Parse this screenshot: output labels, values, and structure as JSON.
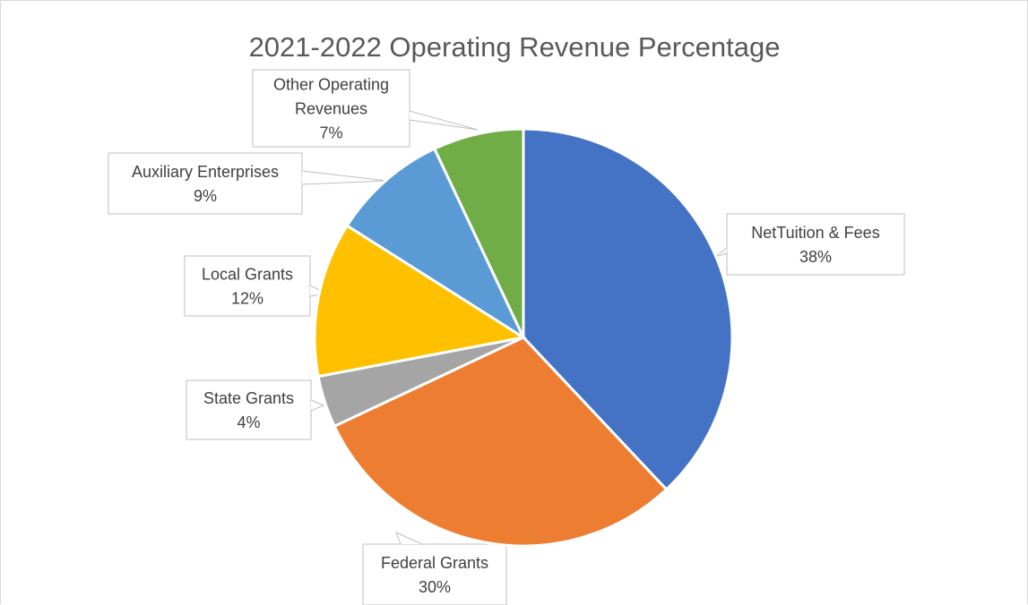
{
  "chart_data": {
    "type": "pie",
    "title": "2021-2022 Operating Revenue Percentage",
    "slices": [
      {
        "label": "NetTuition & Fees",
        "value": 38,
        "value_label": "38%",
        "color": "#4472C4"
      },
      {
        "label": "Federal Grants",
        "value": 30,
        "value_label": "30%",
        "color": "#ED7D31"
      },
      {
        "label": "State Grants",
        "value": 4,
        "value_label": "4%",
        "color": "#A5A5A5"
      },
      {
        "label": "Local Grants",
        "value": 12,
        "value_label": "12%",
        "color": "#FFC000"
      },
      {
        "label": "Auxiliary Enterprises",
        "value": 9,
        "value_label": "9%",
        "color": "#5B9BD5"
      },
      {
        "label": "Other Operating Revenues",
        "value": 7,
        "value_label": "7%",
        "color": "#70AD47"
      }
    ]
  }
}
